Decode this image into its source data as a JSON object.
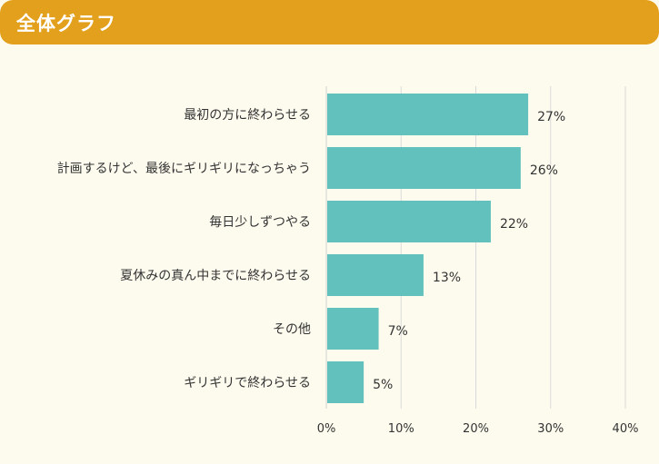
{
  "header": {
    "title": "全体グラフ"
  },
  "colors": {
    "header": "#e3a01c",
    "bar": "#62c1bc",
    "background": "#fdfbee",
    "grid": "#d9d9d9"
  },
  "chart_data": {
    "type": "bar",
    "orientation": "horizontal",
    "categories": [
      "最初の方に終わらせる",
      "計画するけど、最後にギリギリになっちゃう",
      "毎日少しずつやる",
      "夏休みの真ん中までに終わらせる",
      "その他",
      "ギリギリで終わらせる"
    ],
    "values": [
      27,
      26,
      22,
      13,
      7,
      5
    ],
    "value_labels": [
      "27%",
      "26%",
      "22%",
      "13%",
      "7%",
      "5%"
    ],
    "xlim": [
      0,
      40
    ],
    "xticks": [
      0,
      10,
      20,
      30,
      40
    ],
    "xtick_labels": [
      "0%",
      "10%",
      "20%",
      "30%",
      "40%"
    ],
    "grid": true,
    "legend": "none"
  }
}
